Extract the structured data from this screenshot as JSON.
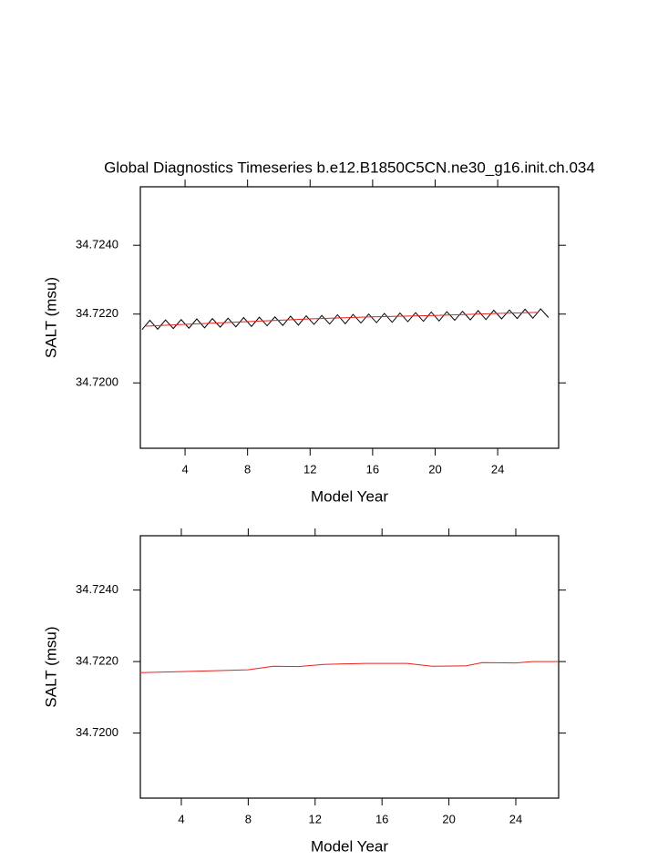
{
  "chart_data": [
    {
      "type": "line",
      "title": "Global Diagnostics Timeseries b.e12.B1850C5CN.ne30_g16.init.ch.034",
      "xlabel": "Model Year",
      "ylabel": "SALT (msu)",
      "xlim": [
        1.14,
        27.9
      ],
      "ylim": [
        34.7181,
        34.7257
      ],
      "xticks": [
        4,
        8,
        12,
        16,
        20,
        24
      ],
      "yticks": [
        {
          "value": 34.72,
          "label": "34.7200"
        },
        {
          "value": 34.722,
          "label": "34.7220"
        },
        {
          "value": 34.724,
          "label": "34.7240"
        }
      ],
      "series": [
        {
          "color": "#000000",
          "x": [
            1.25,
            1.75,
            2.25,
            2.75,
            3.25,
            3.75,
            4.25,
            4.75,
            5.25,
            5.75,
            6.25,
            6.75,
            7.25,
            7.75,
            8.25,
            8.75,
            9.25,
            9.75,
            10.25,
            10.75,
            11.25,
            11.75,
            12.25,
            12.75,
            13.25,
            13.75,
            14.25,
            14.75,
            15.25,
            15.75,
            16.25,
            16.75,
            17.25,
            17.75,
            18.25,
            18.75,
            19.25,
            19.75,
            20.25,
            20.75,
            21.25,
            21.75,
            22.25,
            22.75,
            23.25,
            23.75,
            24.25,
            24.75,
            25.25,
            25.75,
            26.25,
            26.75,
            27.25
          ],
          "values": [
            34.72155,
            34.72182,
            34.72156,
            34.72183,
            34.72158,
            34.72184,
            34.72159,
            34.72186,
            34.7216,
            34.72187,
            34.72162,
            34.72188,
            34.72163,
            34.7219,
            34.72164,
            34.72191,
            34.72166,
            34.72192,
            34.72167,
            34.72194,
            34.72168,
            34.72195,
            34.7217,
            34.72196,
            34.72171,
            34.72198,
            34.72172,
            34.72199,
            34.72174,
            34.722,
            34.72175,
            34.72202,
            34.72176,
            34.72203,
            34.72178,
            34.72204,
            34.72179,
            34.72206,
            34.7218,
            34.72207,
            34.72182,
            34.72208,
            34.72183,
            34.7221,
            34.72184,
            34.72211,
            34.72186,
            34.72212,
            34.72187,
            34.72214,
            34.72188,
            34.72215,
            34.7219
          ]
        },
        {
          "color": "#e8211e",
          "x": [
            1.5,
            4,
            8,
            12,
            16,
            20,
            24,
            26.5
          ],
          "values": [
            34.72165,
            34.7217,
            34.72178,
            34.72186,
            34.72192,
            34.72196,
            34.72202,
            34.72205
          ]
        }
      ]
    },
    {
      "type": "line",
      "xlabel": "Model Year",
      "ylabel": "SALT (msu)",
      "xlim": [
        1.55,
        26.56
      ],
      "ylim": [
        34.71818,
        34.72552
      ],
      "xticks": [
        4,
        8,
        12,
        16,
        20,
        24
      ],
      "yticks": [
        {
          "value": 34.72,
          "label": "34.7200"
        },
        {
          "value": 34.722,
          "label": "34.7220"
        },
        {
          "value": 34.724,
          "label": "34.7240"
        }
      ],
      "series": [
        {
          "color": "#e8211e",
          "x": [
            1.55,
            4,
            8,
            9.5,
            11,
            12.5,
            15,
            17.5,
            19,
            21,
            22,
            24,
            25,
            26.5
          ],
          "values": [
            34.72169,
            34.72172,
            34.72177,
            34.72187,
            34.72186,
            34.72192,
            34.72195,
            34.72195,
            34.72187,
            34.72188,
            34.72197,
            34.72196,
            34.722,
            34.722
          ]
        }
      ]
    }
  ]
}
